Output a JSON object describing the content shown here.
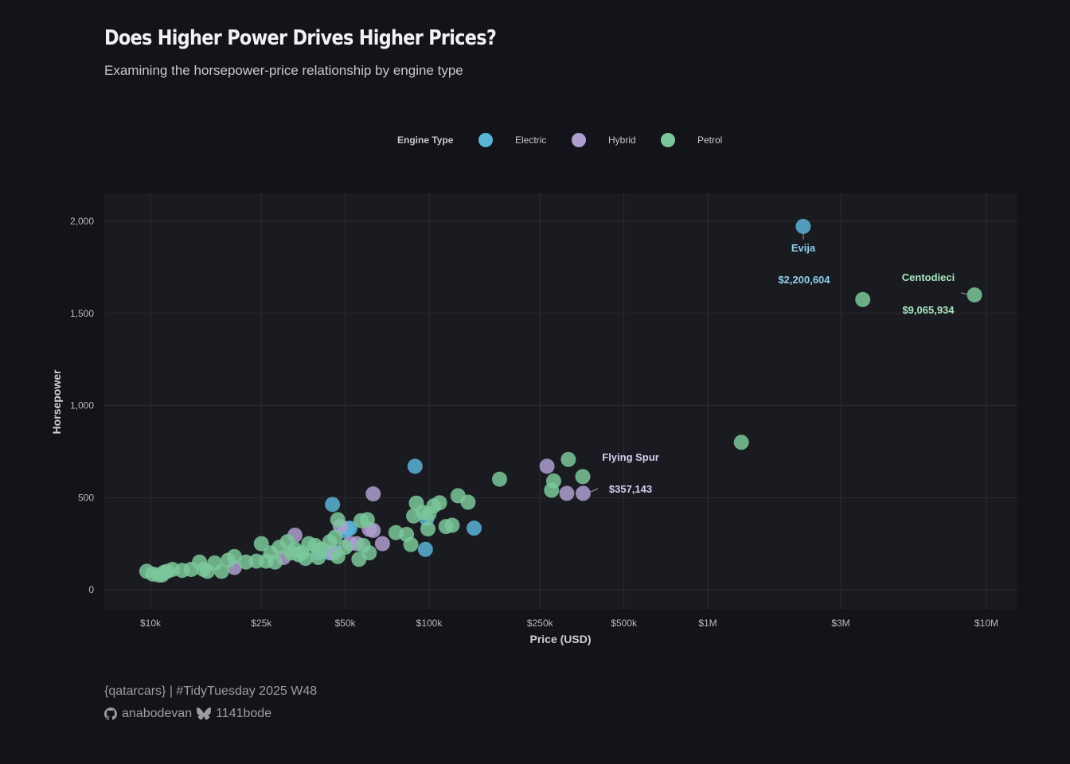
{
  "header": {
    "title": "Does Higher Power Drives Higher Prices?",
    "subtitle": "Examining the horsepower-price relationship by engine type"
  },
  "legend": {
    "title": "Engine Type",
    "items": [
      {
        "label": "Electric",
        "color": "#5BB3D6"
      },
      {
        "label": "Hybrid",
        "color": "#AE9FD0"
      },
      {
        "label": "Petrol",
        "color": "#7BC79B"
      }
    ]
  },
  "footer": {
    "source": "{qatarcars} | #TidyTuesday 2025 W48",
    "github_icon": "github-icon",
    "github_handle": "anabodevan",
    "bluesky_icon": "butterfly-icon",
    "bluesky_handle": "1141bode"
  },
  "colors": {
    "background": "#131419",
    "panel": "#1a1b20",
    "grid": "#2c2d33",
    "Electric": "#5BB3D6",
    "Hybrid": "#AE9FD0",
    "Petrol": "#7BC79B",
    "highlight_Petrol": "#8ee0ad",
    "highlight_Electric": "#66c8f5"
  },
  "chart_data": {
    "type": "scatter",
    "title": "Does Higher Power Drives Higher Prices?",
    "subtitle": "Examining the horsepower-price relationship by engine type",
    "xlabel": "Price (USD)",
    "ylabel": "Horsepower",
    "x_scale": "log10",
    "xlim": [
      8000,
      12000000
    ],
    "ylim": [
      -100,
      2150
    ],
    "x_ticks": [
      10000,
      25000,
      50000,
      100000,
      250000,
      500000,
      1000000,
      3000000,
      10000000
    ],
    "x_tick_labels": [
      "$10k",
      "$25k",
      "$50k",
      "$100k",
      "$250k",
      "$500k",
      "$1M",
      "$3M",
      "$10M"
    ],
    "y_ticks": [
      0,
      500,
      1000,
      1500,
      2000
    ],
    "y_tick_labels": [
      "0",
      "500",
      "1,000",
      "1,500",
      "2,000"
    ],
    "grid": true,
    "legend_position": "top",
    "series": [
      {
        "name": "Electric",
        "points": [
          [
            2200604,
            1972
          ],
          [
            89000,
            670
          ],
          [
            45000,
            463
          ],
          [
            52000,
            333
          ],
          [
            50000,
            320
          ],
          [
            43000,
            207
          ],
          [
            46000,
            205
          ],
          [
            40000,
            200
          ],
          [
            97000,
            219
          ],
          [
            145000,
            334
          ],
          [
            98000,
            385
          ],
          [
            51000,
            332
          ],
          [
            44000,
            200
          ]
        ]
      },
      {
        "name": "Hybrid",
        "points": [
          [
            357143,
            523
          ],
          [
            63000,
            520
          ],
          [
            265000,
            670
          ],
          [
            312000,
            523
          ],
          [
            33000,
            296
          ],
          [
            48000,
            344
          ],
          [
            61000,
            328
          ],
          [
            68000,
            250
          ],
          [
            20000,
            121
          ],
          [
            52000,
            251
          ],
          [
            30000,
            175
          ],
          [
            63000,
            322
          ],
          [
            45000,
            200
          ],
          [
            55000,
            250
          ]
        ]
      },
      {
        "name": "Petrol",
        "points": [
          [
            9065934,
            1600
          ],
          [
            3600000,
            1575
          ],
          [
            1320000,
            800
          ],
          [
            316000,
            707
          ],
          [
            179000,
            600
          ],
          [
            280000,
            590
          ],
          [
            356000,
            614
          ],
          [
            275000,
            540
          ],
          [
            90000,
            470
          ],
          [
            104000,
            455
          ],
          [
            109000,
            472
          ],
          [
            127000,
            510
          ],
          [
            138000,
            475
          ],
          [
            99000,
            330
          ],
          [
            115000,
            343
          ],
          [
            121000,
            350
          ],
          [
            88000,
            400
          ],
          [
            95000,
            420
          ],
          [
            100000,
            412
          ],
          [
            76000,
            310
          ],
          [
            83000,
            300
          ],
          [
            86000,
            245
          ],
          [
            60000,
            380
          ],
          [
            57000,
            375
          ],
          [
            61000,
            200
          ],
          [
            56000,
            165
          ],
          [
            58000,
            240
          ],
          [
            47000,
            380
          ],
          [
            46000,
            285
          ],
          [
            44000,
            260
          ],
          [
            47000,
            180
          ],
          [
            50000,
            230
          ],
          [
            25000,
            250
          ],
          [
            29000,
            230
          ],
          [
            31000,
            260
          ],
          [
            33000,
            220
          ],
          [
            35000,
            200
          ],
          [
            37000,
            250
          ],
          [
            39000,
            240
          ],
          [
            41000,
            220
          ],
          [
            40000,
            175
          ],
          [
            36000,
            170
          ],
          [
            34000,
            190
          ],
          [
            20000,
            180
          ],
          [
            22000,
            150
          ],
          [
            24000,
            155
          ],
          [
            26000,
            155
          ],
          [
            28000,
            150
          ],
          [
            27000,
            200
          ],
          [
            17000,
            145
          ],
          [
            15000,
            150
          ],
          [
            15500,
            110
          ],
          [
            16000,
            100
          ],
          [
            18000,
            100
          ],
          [
            14000,
            110
          ],
          [
            12000,
            110
          ],
          [
            11500,
            100
          ],
          [
            11000,
            80
          ],
          [
            11200,
            95
          ],
          [
            10700,
            80
          ],
          [
            9700,
            100
          ],
          [
            10200,
            85
          ],
          [
            13000,
            105
          ],
          [
            19000,
            160
          ],
          [
            32000,
            200
          ]
        ]
      }
    ],
    "annotations": [
      {
        "label": "Evija",
        "value": "$2,200,604",
        "series": "Electric",
        "x": 2200604,
        "y": 1972
      },
      {
        "label": "Centodieci",
        "value": "$9,065,934",
        "series": "Petrol",
        "x": 9065934,
        "y": 1600
      },
      {
        "label": "Flying Spur",
        "value": "$357,143",
        "series": "Hybrid",
        "x": 357143,
        "y": 523
      }
    ]
  }
}
